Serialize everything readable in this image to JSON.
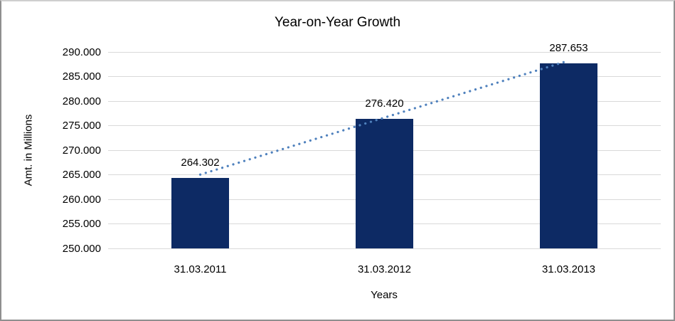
{
  "window": {
    "background": "#ffffff",
    "frame_border_color": "#8f8f8f"
  },
  "chart_data": {
    "type": "bar",
    "title": "Year-on-Year Growth",
    "categories": [
      "31.03.2011",
      "31.03.2012",
      "31.03.2013"
    ],
    "values": [
      264.302,
      276.42,
      287.653
    ],
    "data_labels": [
      "264.302",
      "276.420",
      "287.653"
    ],
    "xlabel": "Years",
    "ylabel": "Amt. in Millions",
    "ylim": [
      250,
      290
    ],
    "ytick_step": 5,
    "ytick_labels": [
      "290.000",
      "285.000",
      "280.000",
      "275.000",
      "270.000",
      "265.000",
      "260.000",
      "255.000",
      "250.000"
    ],
    "grid": true,
    "legend_position": "none",
    "trendline": {
      "type": "linear",
      "style": "dotted"
    },
    "colors": {
      "bar": "#0d2a64",
      "trendline": "#4f81bd",
      "gridline": "#d9d9d9",
      "text": "#000000"
    }
  }
}
